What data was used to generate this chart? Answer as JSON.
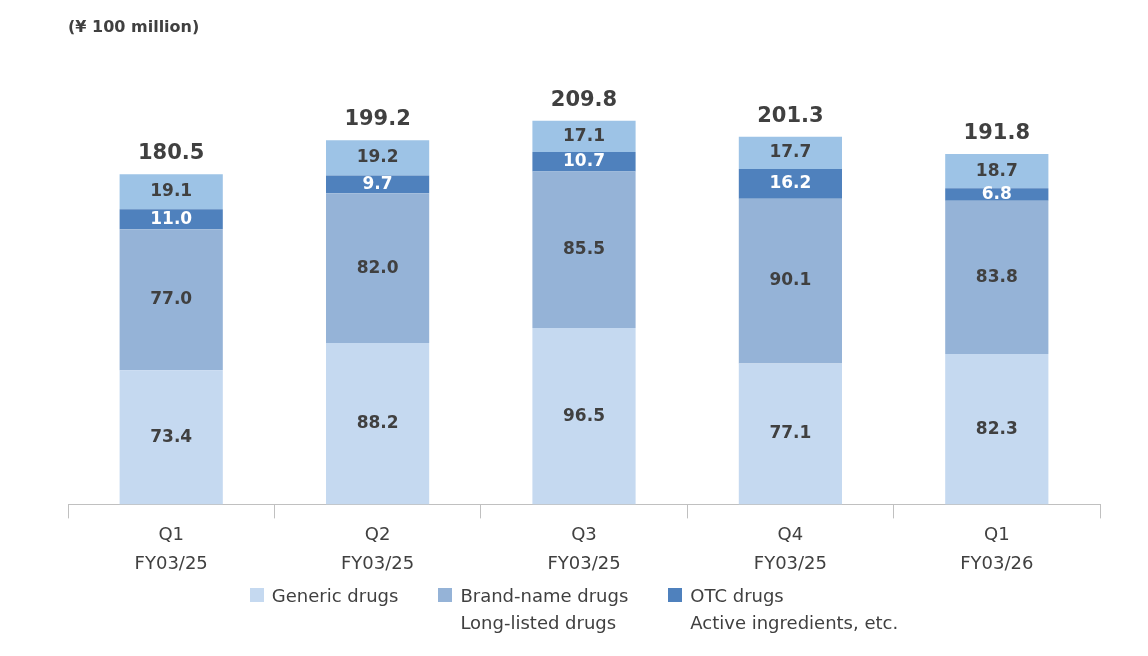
{
  "chart_data": {
    "type": "bar",
    "annotations": [
      "(¥ 100 million)"
    ],
    "stacked": true,
    "legend": "bottom",
    "categories": [
      "Q1\nFY03/25",
      "Q2\nFY03/25",
      "Q3\nFY03/25",
      "Q4\nFY03/25",
      "Q1\nFY03/26"
    ],
    "series": [
      {
        "name": "Generic drugs",
        "color": "#c5d9f0",
        "values": [
          73.4,
          88.2,
          96.5,
          77.1,
          82.3
        ],
        "value_labels": [
          "73.4",
          "88.2",
          "96.5",
          "77.1",
          "82.3"
        ]
      },
      {
        "name": "Brand-name drugs\nLong-listed drugs",
        "color": "#95b3d7",
        "values": [
          77.0,
          82.0,
          85.5,
          90.1,
          83.8
        ],
        "value_labels": [
          "77.0",
          "82.0",
          "85.5",
          "90.1",
          "83.8"
        ]
      },
      {
        "name": "OTC drugs\nActive ingredients, etc.",
        "color": "#4f81bd",
        "values": [
          11.0,
          9.7,
          10.7,
          16.2,
          6.8
        ],
        "value_labels": [
          "11.0",
          "9.7",
          "10.7",
          "16.2",
          "6.8"
        ]
      },
      {
        "color": "#9dc3e6",
        "values": [
          19.1,
          19.2,
          17.1,
          17.7,
          18.7
        ],
        "value_labels": [
          "19.1",
          "19.2",
          "17.1",
          "17.7",
          "18.7"
        ]
      }
    ],
    "totals": [
      "180.5",
      "199.2",
      "209.8",
      "201.3",
      "191.8"
    ]
  }
}
